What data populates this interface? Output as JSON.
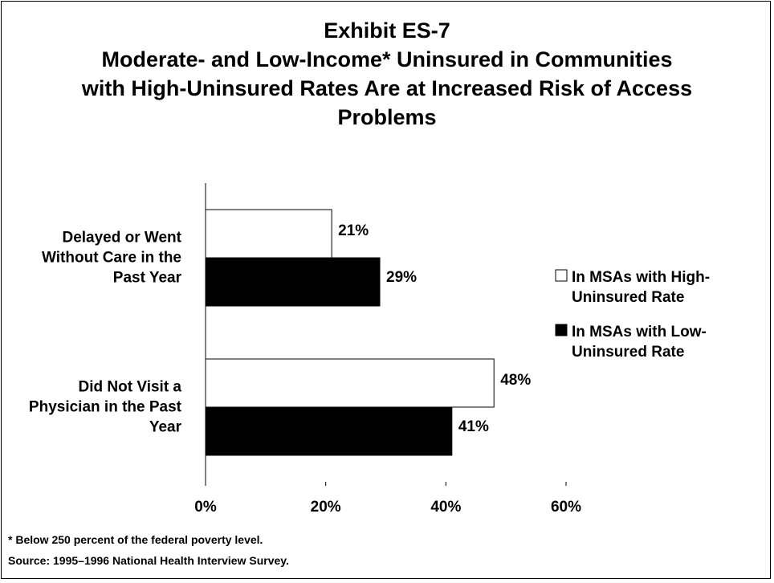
{
  "chart_data": {
    "type": "hbar",
    "title": "Exhibit ES-7",
    "subtitle": "Moderate- and Low-Income* Uninsured in Communities with High-Uninsured Rates Are at Increased Risk of Access Problems",
    "categories": [
      "Delayed or Went Without Care in the Past Year",
      "Did Not Visit a Physician in the Past Year"
    ],
    "series": [
      {
        "name": "In MSAs with High-Uninsured Rate",
        "color": "#ffffff",
        "values": [
          21,
          48
        ],
        "value_labels": [
          "21%",
          "48%"
        ]
      },
      {
        "name": "In MSAs with Low-Uninsured Rate",
        "color": "#000000",
        "values": [
          29,
          41
        ],
        "value_labels": [
          "29%",
          "41%"
        ]
      }
    ],
    "xlim": [
      0,
      60
    ],
    "xticks": [
      {
        "value": 0,
        "label": "0%"
      },
      {
        "value": 20,
        "label": "20%"
      },
      {
        "value": 40,
        "label": "40%"
      },
      {
        "value": 60,
        "label": "60%"
      }
    ],
    "notes": [
      "* Below 250 percent of the federal poverty level.",
      "Source: 1995–1996 National Health Interview Survey."
    ]
  }
}
